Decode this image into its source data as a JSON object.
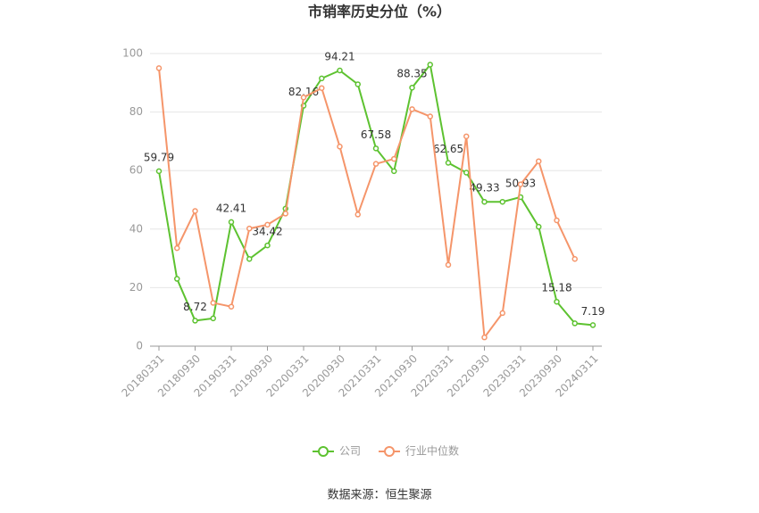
{
  "chart_data": {
    "type": "line",
    "title": "市销率历史分位（%）",
    "source": "数据来源：恒生聚源",
    "categories": [
      "20180331",
      null,
      "20180930",
      null,
      "20190331",
      null,
      "20190930",
      null,
      "20200331",
      null,
      "20200930",
      null,
      "20210331",
      null,
      "20210930",
      null,
      "20220331",
      null,
      "20220930",
      null,
      "20230331",
      null,
      "20230930",
      null,
      "20240311"
    ],
    "series": [
      {
        "name": "公司",
        "color": "#5dc230",
        "values": [
          59.79,
          23,
          8.72,
          9.5,
          42.41,
          29.8,
          34.42,
          47,
          82.16,
          91.5,
          94.21,
          89.5,
          67.58,
          59.8,
          88.35,
          96.2,
          62.65,
          59.3,
          49.33,
          49.33,
          50.93,
          40.8,
          15.18,
          7.8,
          7.19
        ],
        "value_labels": [
          "59.79",
          null,
          "8.72",
          null,
          "42.41",
          null,
          "34.42",
          null,
          "82.16",
          null,
          "94.21",
          null,
          "67.58",
          null,
          "88.35",
          null,
          "62.65",
          null,
          "49.33",
          null,
          "50.93",
          null,
          "15.18",
          null,
          "7.19"
        ]
      },
      {
        "name": "行业中位数",
        "color": "#f5956a",
        "values": [
          95,
          33.5,
          46.2,
          14.8,
          13.5,
          40.2,
          41.5,
          45.3,
          85,
          88.2,
          68.2,
          45,
          62.3,
          64,
          81,
          78.5,
          27.8,
          71.7,
          3,
          11.3,
          55.3,
          63.2,
          43,
          29.8,
          null
        ]
      }
    ],
    "ylim": [
      0,
      100
    ],
    "yticks": [
      0,
      20,
      40,
      60,
      80,
      100
    ],
    "grid": true,
    "legend": "bottom"
  }
}
